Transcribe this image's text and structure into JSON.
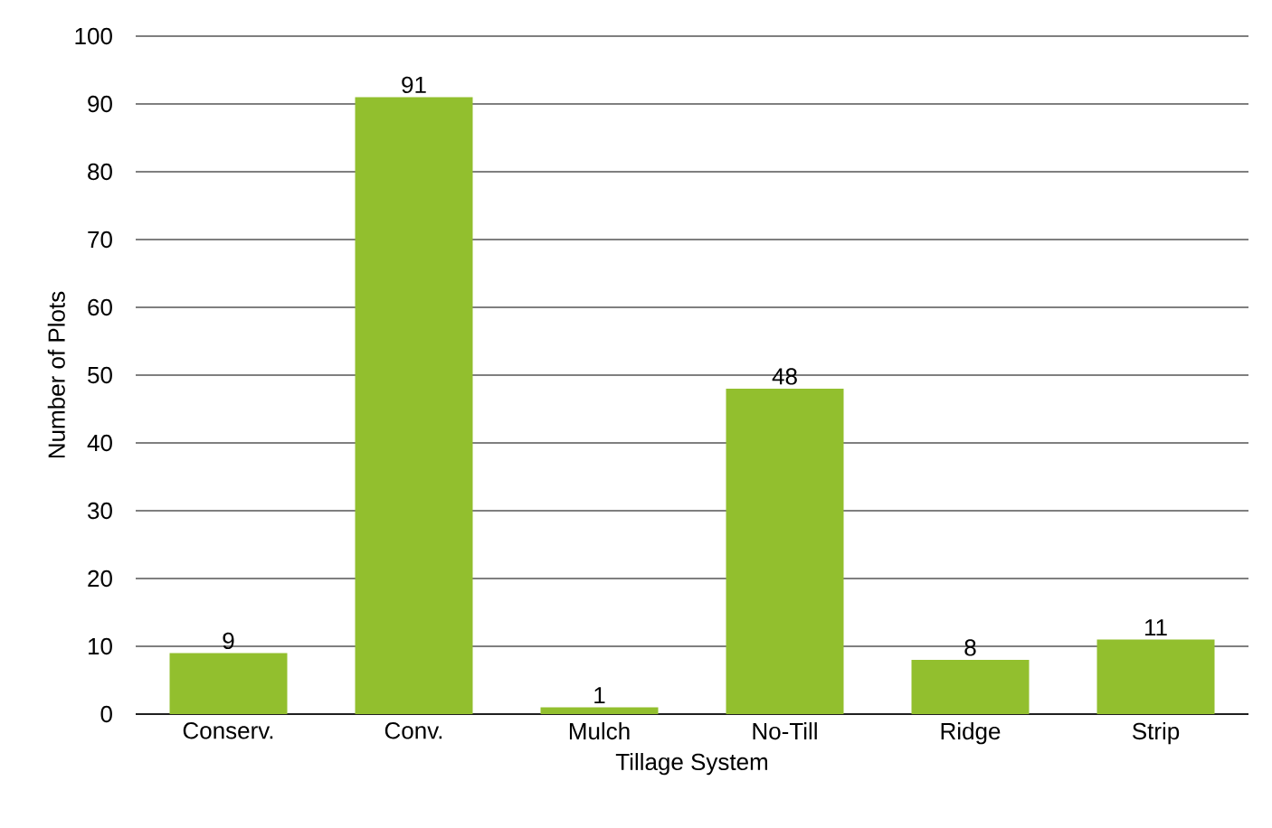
{
  "chart_data": {
    "type": "bar",
    "xlabel": "Tillage System",
    "ylabel": "Number of Plots",
    "categories": [
      "Conserv.",
      "Conv.",
      "Mulch",
      "No-Till",
      "Ridge",
      "Strip"
    ],
    "values": [
      9,
      91,
      1,
      48,
      8,
      11
    ],
    "color": "#92bf2e",
    "ylim": [
      0,
      100
    ],
    "yticks": [
      0,
      10,
      20,
      30,
      40,
      50,
      60,
      70,
      80,
      90,
      100
    ],
    "grid": "y",
    "data_labels": true
  }
}
